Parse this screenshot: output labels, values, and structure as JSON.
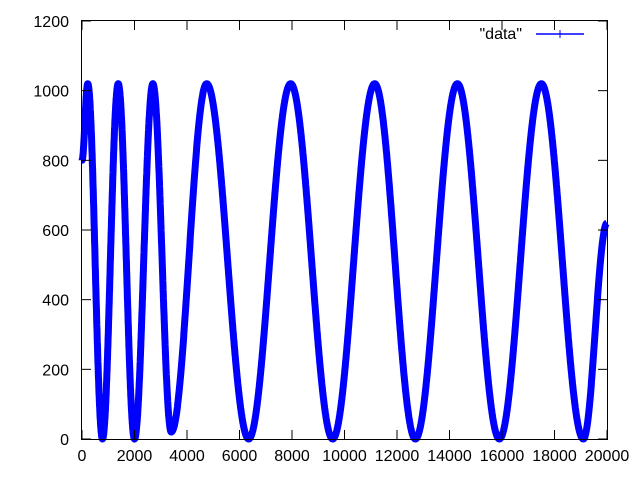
{
  "chart_data": {
    "type": "line",
    "title": "",
    "xlabel": "",
    "ylabel": "",
    "xlim": [
      0,
      20000
    ],
    "ylim": [
      0,
      1200
    ],
    "x_ticks": [
      "0",
      "2000",
      "4000",
      "6000",
      "8000",
      "10000",
      "12000",
      "14000",
      "16000",
      "18000",
      "20000"
    ],
    "y_ticks": [
      "0",
      "200",
      "400",
      "600",
      "800",
      "1000",
      "1200"
    ],
    "grid": false,
    "legend_position": "top-right",
    "series": [
      {
        "name": "\"data\"",
        "color": "#0000ff",
        "style": "linespoints",
        "segments": [
          {
            "x_start": 0,
            "x_end": 220,
            "y_start": 800,
            "y_end": 1020
          },
          {
            "x_start": 220,
            "x_end": 780,
            "y_start": 1020,
            "y_end": 0
          },
          {
            "x_start": 780,
            "x_end": 1380,
            "y_start": 0,
            "y_end": 1020
          },
          {
            "x_start": 1380,
            "x_end": 2000,
            "y_start": 1020,
            "y_end": 0
          },
          {
            "x_start": 2000,
            "x_end": 2700,
            "y_start": 0,
            "y_end": 1020
          },
          {
            "x_start": 2700,
            "x_end": 3400,
            "y_start": 1020,
            "y_end": 20
          },
          {
            "x_start": 3400,
            "x_end": 4750,
            "y_start": 20,
            "y_end": 1020
          },
          {
            "x_start": 4750,
            "x_end": 6350,
            "y_start": 1020,
            "y_end": 0
          },
          {
            "x_start": 6350,
            "x_end": 7950,
            "y_start": 0,
            "y_end": 1020
          },
          {
            "x_start": 7950,
            "x_end": 9550,
            "y_start": 1020,
            "y_end": 0
          },
          {
            "x_start": 9550,
            "x_end": 11150,
            "y_start": 0,
            "y_end": 1020
          },
          {
            "x_start": 11150,
            "x_end": 12700,
            "y_start": 1020,
            "y_end": 0
          },
          {
            "x_start": 12700,
            "x_end": 14300,
            "y_start": 0,
            "y_end": 1020
          },
          {
            "x_start": 14300,
            "x_end": 15900,
            "y_start": 1020,
            "y_end": 0
          },
          {
            "x_start": 15900,
            "x_end": 17500,
            "y_start": 0,
            "y_end": 1020
          },
          {
            "x_start": 17500,
            "x_end": 19100,
            "y_start": 1020,
            "y_end": 0
          },
          {
            "x_start": 19100,
            "x_end": 20000,
            "y_start": 0,
            "y_end": 620
          }
        ]
      }
    ]
  }
}
